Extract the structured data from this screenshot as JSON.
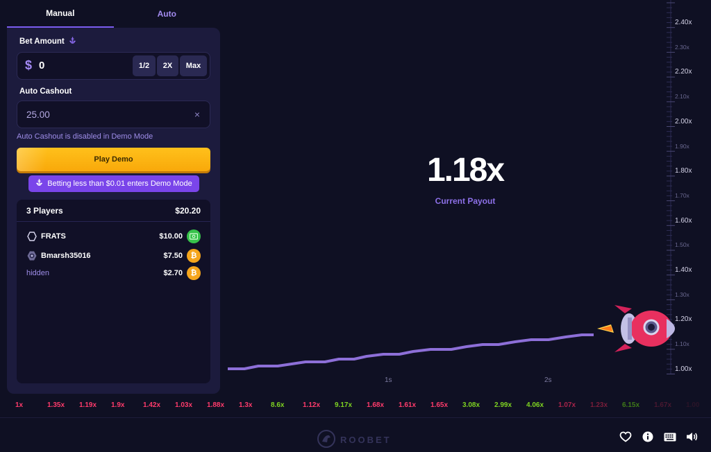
{
  "tabs": {
    "manual": "Manual",
    "auto": "Auto"
  },
  "bet": {
    "label": "Bet Amount",
    "currency_symbol": "$",
    "value": "0",
    "half": "1/2",
    "double": "2X",
    "max": "Max"
  },
  "auto_cashout": {
    "label": "Auto Cashout",
    "value": "25.00",
    "clear": "×",
    "disabled_note": "Auto Cashout is disabled in Demo Mode"
  },
  "play_button": "Play Demo",
  "demo_banner": "Betting less than $0.01 enters Demo Mode",
  "players": {
    "count_label": "3 Players",
    "total": "$20.20",
    "rows": [
      {
        "name": "FRATS",
        "amount": "$10.00",
        "coin": "cash"
      },
      {
        "name": "Bmarsh35016",
        "amount": "$7.50",
        "coin": "btc"
      },
      {
        "name": "hidden",
        "amount": "$2.70",
        "coin": "btc"
      }
    ]
  },
  "payout": {
    "value": "1.18x",
    "label": "Current Payout"
  },
  "y_axis": [
    {
      "label": "2.40x",
      "major": true
    },
    {
      "label": "2.30x",
      "major": false
    },
    {
      "label": "2.20x",
      "major": true
    },
    {
      "label": "2.10x",
      "major": false
    },
    {
      "label": "2.00x",
      "major": true
    },
    {
      "label": "1.90x",
      "major": false
    },
    {
      "label": "1.80x",
      "major": true
    },
    {
      "label": "1.70x",
      "major": false
    },
    {
      "label": "1.60x",
      "major": true
    },
    {
      "label": "1.50x",
      "major": false
    },
    {
      "label": "1.40x",
      "major": true
    },
    {
      "label": "1.30x",
      "major": false
    },
    {
      "label": "1.20x",
      "major": true
    },
    {
      "label": "1.10x",
      "major": false
    },
    {
      "label": "1.00x",
      "major": true
    }
  ],
  "x_axis": [
    "1s",
    "2s"
  ],
  "history": [
    {
      "value": "1x",
      "color": "#ff3b6b"
    },
    {
      "value": "1.35x",
      "color": "#ff3b6b"
    },
    {
      "value": "1.19x",
      "color": "#ff3b6b"
    },
    {
      "value": "1.9x",
      "color": "#ff3b6b"
    },
    {
      "value": "1.42x",
      "color": "#ff3b6b"
    },
    {
      "value": "1.03x",
      "color": "#ff3b6b"
    },
    {
      "value": "1.88x",
      "color": "#ff3b6b"
    },
    {
      "value": "1.3x",
      "color": "#ff3b6b"
    },
    {
      "value": "8.6x",
      "color": "#7ed321"
    },
    {
      "value": "1.12x",
      "color": "#ff3b6b"
    },
    {
      "value": "9.17x",
      "color": "#7ed321"
    },
    {
      "value": "1.68x",
      "color": "#ff3b6b"
    },
    {
      "value": "1.61x",
      "color": "#ff3b6b"
    },
    {
      "value": "1.65x",
      "color": "#ff3b6b"
    },
    {
      "value": "3.08x",
      "color": "#7ed321"
    },
    {
      "value": "2.99x",
      "color": "#7ed321"
    },
    {
      "value": "4.06x",
      "color": "#7ed321"
    },
    {
      "value": "1.07x",
      "color": "#a8244a"
    },
    {
      "value": "1.23x",
      "color": "#7a1d3a"
    },
    {
      "value": "6.15x",
      "color": "#3f7a18"
    },
    {
      "value": "1.67x",
      "color": "#4a1830"
    },
    {
      "value": "1.00",
      "color": "#2a1428"
    }
  ],
  "footer": {
    "brand": "ROOBET"
  },
  "colors": {
    "accent": "#7b5cf0",
    "line": "#8d6fd8",
    "play": "#ffb20f"
  }
}
